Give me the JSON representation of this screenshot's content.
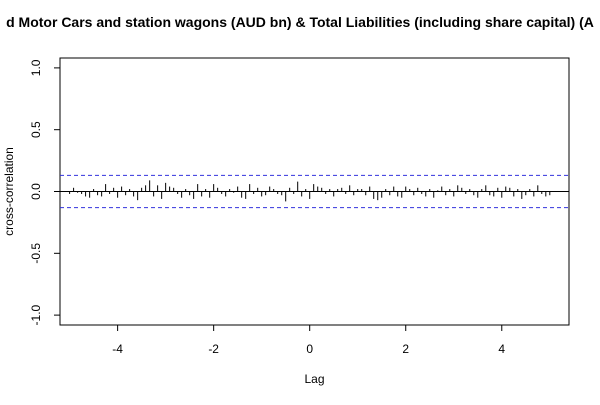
{
  "chart_data": {
    "type": "bar",
    "title": "d Motor Cars and station wagons (AUD bn) & Total Liabilities (including share capital) (A",
    "xlabel": "Lag",
    "ylabel": "cross-correlation",
    "xlim": [
      -5.2,
      5.4
    ],
    "ylim": [
      -1.08,
      1.08
    ],
    "x_ticks": [
      -4,
      -2,
      0,
      2,
      4
    ],
    "y_ticks": [
      -1.0,
      -0.5,
      0.0,
      0.5,
      1.0
    ],
    "y_tick_labels": [
      "-1.0",
      "-0.5",
      "0.0",
      "0.5",
      "1.0"
    ],
    "confidence_band": 0.13,
    "grid": false,
    "series": [
      {
        "x": [
          -5.0,
          -4.917,
          -4.833,
          -4.75,
          -4.667,
          -4.583,
          -4.5,
          -4.417,
          -4.333,
          -4.25,
          -4.167,
          -4.083,
          -4.0,
          -3.917,
          -3.833,
          -3.75,
          -3.667,
          -3.583,
          -3.5,
          -3.417,
          -3.333,
          -3.25,
          -3.167,
          -3.083,
          -3.0,
          -2.917,
          -2.833,
          -2.75,
          -2.667,
          -2.583,
          -2.5,
          -2.417,
          -2.333,
          -2.25,
          -2.167,
          -2.083,
          -2.0,
          -1.917,
          -1.833,
          -1.75,
          -1.667,
          -1.583,
          -1.5,
          -1.417,
          -1.333,
          -1.25,
          -1.167,
          -1.083,
          -1.0,
          -0.917,
          -0.833,
          -0.75,
          -0.667,
          -0.583,
          -0.5,
          -0.417,
          -0.333,
          -0.25,
          -0.167,
          -0.083,
          0.0,
          0.083,
          0.167,
          0.25,
          0.333,
          0.417,
          0.5,
          0.583,
          0.667,
          0.75,
          0.833,
          0.917,
          1.0,
          1.083,
          1.167,
          1.25,
          1.333,
          1.417,
          1.5,
          1.583,
          1.667,
          1.75,
          1.833,
          1.917,
          2.0,
          2.083,
          2.167,
          2.25,
          2.333,
          2.417,
          2.5,
          2.583,
          2.667,
          2.75,
          2.833,
          2.917,
          3.0,
          3.083,
          3.167,
          3.25,
          3.333,
          3.417,
          3.5,
          3.583,
          3.667,
          3.75,
          3.833,
          3.917,
          4.0,
          4.083,
          4.167,
          4.25,
          4.333,
          4.417,
          4.5,
          4.583,
          4.667,
          4.75,
          4.833,
          4.917,
          5.0
        ],
        "values": [
          -0.02,
          0.03,
          -0.01,
          -0.02,
          -0.04,
          -0.05,
          0.02,
          -0.03,
          -0.04,
          0.06,
          -0.02,
          0.03,
          -0.05,
          0.04,
          -0.03,
          0.02,
          -0.04,
          -0.07,
          0.03,
          0.05,
          0.09,
          -0.04,
          0.05,
          -0.06,
          0.07,
          0.04,
          0.03,
          -0.02,
          -0.05,
          0.02,
          -0.03,
          -0.06,
          0.06,
          -0.04,
          0.02,
          -0.05,
          0.06,
          0.03,
          -0.02,
          -0.04,
          0.02,
          -0.01,
          0.04,
          -0.05,
          -0.06,
          0.06,
          -0.02,
          0.03,
          -0.04,
          -0.03,
          0.04,
          0.02,
          -0.02,
          -0.03,
          -0.08,
          0.03,
          -0.02,
          0.08,
          -0.04,
          0.02,
          -0.06,
          0.06,
          0.04,
          0.03,
          -0.02,
          0.02,
          -0.04,
          0.02,
          0.03,
          -0.02,
          0.05,
          -0.03,
          0.02,
          0.02,
          -0.03,
          0.04,
          -0.06,
          -0.07,
          -0.05,
          0.02,
          -0.03,
          0.04,
          -0.04,
          -0.05,
          0.04,
          0.02,
          -0.03,
          0.03,
          -0.02,
          -0.04,
          0.02,
          -0.05,
          0.01,
          0.04,
          -0.03,
          0.02,
          -0.04,
          0.05,
          0.03,
          -0.02,
          0.02,
          -0.03,
          -0.05,
          0.02,
          0.05,
          -0.03,
          -0.04,
          0.03,
          -0.05,
          0.04,
          0.03,
          -0.04,
          0.02,
          -0.06,
          -0.03,
          0.02,
          -0.04,
          0.05,
          -0.02,
          -0.04,
          -0.03
        ]
      }
    ]
  }
}
